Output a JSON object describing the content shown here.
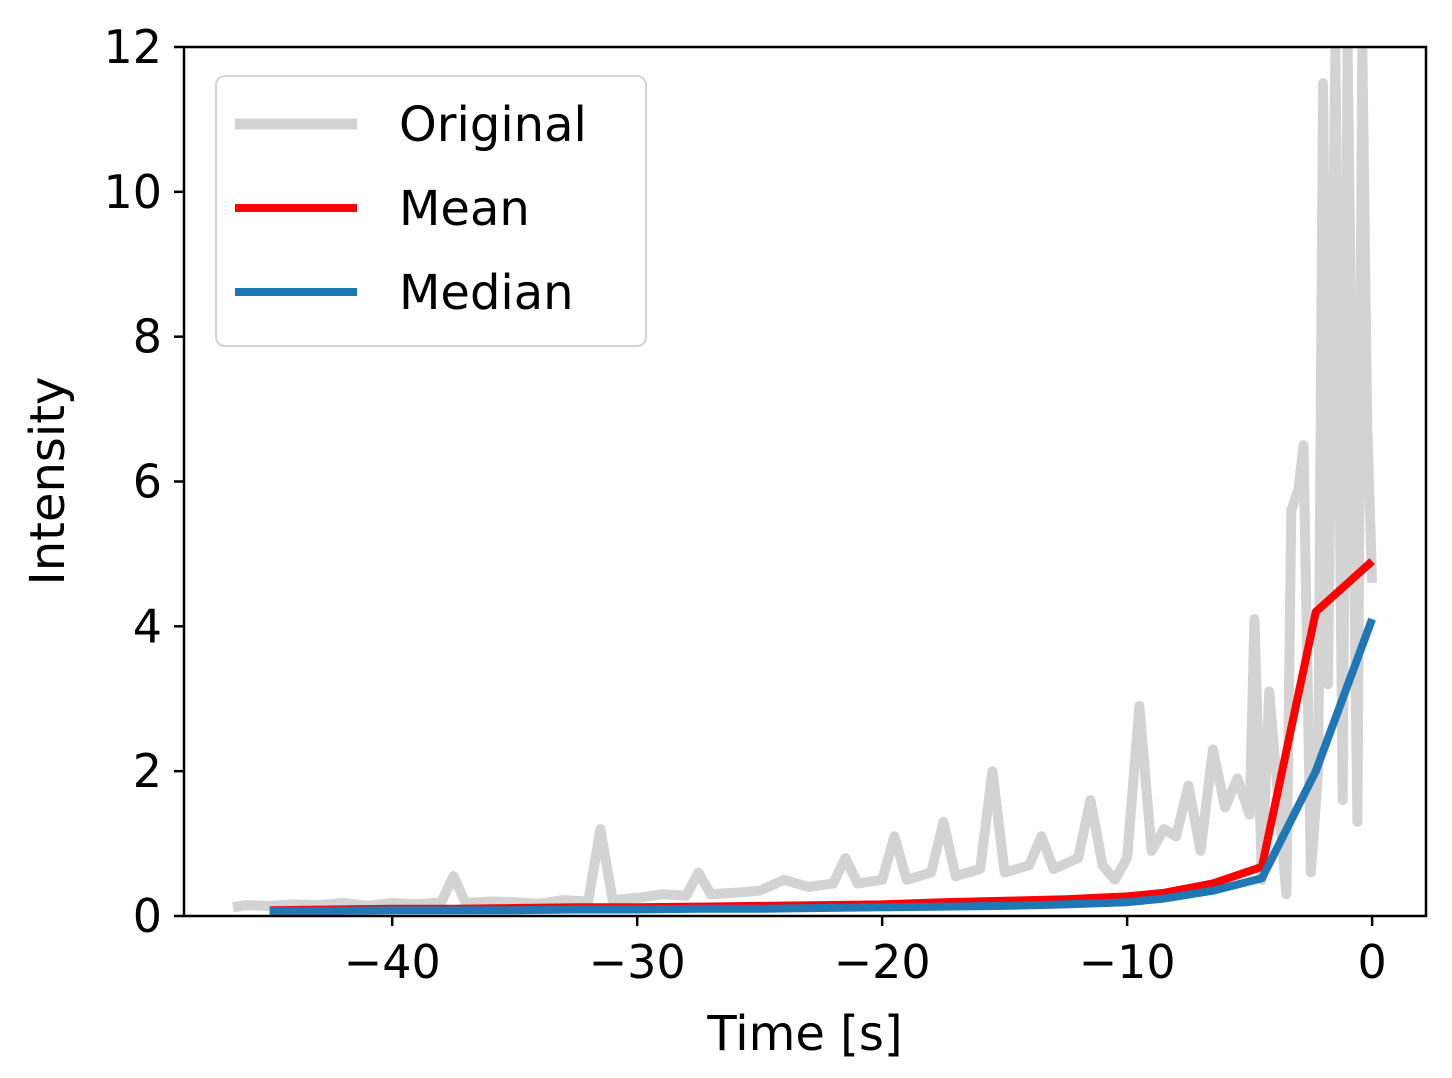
{
  "chart_data": {
    "type": "line",
    "xlabel": "Time [s]",
    "ylabel": "Intensity",
    "xlim": [
      -48.5,
      2.2
    ],
    "ylim": [
      0,
      12
    ],
    "xticks": [
      -40,
      -30,
      -20,
      -10,
      0
    ],
    "xtick_labels": [
      "−40",
      "−30",
      "−20",
      "−10",
      "0"
    ],
    "yticks": [
      0,
      2,
      4,
      6,
      8,
      10,
      12
    ],
    "ytick_labels": [
      "0",
      "2",
      "4",
      "6",
      "8",
      "10",
      "12"
    ],
    "grid": false,
    "legend_position": "top-left",
    "series": [
      {
        "name": "Original",
        "color": "#d3d3d3",
        "style": "noisy-trace",
        "x": [
          -46.5,
          -46.0,
          -45.0,
          -44.0,
          -43.0,
          -42.0,
          -41.0,
          -40.0,
          -39.0,
          -38.0,
          -37.5,
          -37.0,
          -36.0,
          -35.0,
          -34.0,
          -33.0,
          -32.0,
          -31.5,
          -31.0,
          -30.0,
          -29.0,
          -28.0,
          -27.5,
          -27.0,
          -26.0,
          -25.0,
          -24.0,
          -23.0,
          -22.0,
          -21.5,
          -21.0,
          -20.0,
          -19.5,
          -19.0,
          -18.0,
          -17.5,
          -17.0,
          -16.0,
          -15.5,
          -15.0,
          -14.0,
          -13.5,
          -13.0,
          -12.0,
          -11.5,
          -11.0,
          -10.5,
          -10.0,
          -9.5,
          -9.0,
          -8.5,
          -8.0,
          -7.5,
          -7.0,
          -6.5,
          -6.0,
          -5.5,
          -5.0,
          -4.8,
          -4.5,
          -4.2,
          -4.0,
          -3.5,
          -3.3,
          -3.0,
          -2.8,
          -2.5,
          -2.2,
          -2.0,
          -1.8,
          -1.5,
          -1.2,
          -1.0,
          -0.8,
          -0.6,
          -0.4,
          -0.2,
          0.0
        ],
        "y": [
          0.12,
          0.15,
          0.14,
          0.16,
          0.15,
          0.18,
          0.14,
          0.18,
          0.16,
          0.19,
          0.55,
          0.18,
          0.2,
          0.19,
          0.17,
          0.22,
          0.2,
          1.2,
          0.22,
          0.25,
          0.3,
          0.28,
          0.6,
          0.3,
          0.32,
          0.35,
          0.5,
          0.4,
          0.45,
          0.8,
          0.45,
          0.5,
          1.1,
          0.5,
          0.6,
          1.3,
          0.55,
          0.65,
          2.0,
          0.6,
          0.7,
          1.1,
          0.65,
          0.8,
          1.6,
          0.7,
          0.5,
          0.8,
          2.9,
          0.9,
          1.2,
          1.1,
          1.8,
          0.9,
          2.3,
          1.5,
          1.9,
          1.4,
          4.1,
          0.5,
          3.1,
          2.3,
          0.3,
          5.6,
          5.9,
          6.5,
          0.6,
          2.0,
          11.5,
          3.2,
          12.0,
          1.6,
          12.0,
          6.6,
          1.3,
          12.0,
          6.8,
          4.6
        ]
      },
      {
        "name": "Mean",
        "color": "#ff0000",
        "x": [
          -45,
          -42.5,
          -40,
          -37.5,
          -35,
          -32.5,
          -30,
          -27.5,
          -25,
          -22.5,
          -20,
          -17.5,
          -15,
          -12.5,
          -10,
          -8.5,
          -6.5,
          -4.5,
          -2.3,
          0
        ],
        "y": [
          0.08,
          0.09,
          0.1,
          0.1,
          0.11,
          0.12,
          0.12,
          0.13,
          0.14,
          0.15,
          0.16,
          0.19,
          0.21,
          0.23,
          0.27,
          0.32,
          0.45,
          0.68,
          4.2,
          4.9
        ]
      },
      {
        "name": "Median",
        "color": "#1f77b4",
        "x": [
          -45,
          -42.5,
          -40,
          -37.5,
          -35,
          -32.5,
          -30,
          -27.5,
          -25,
          -22.5,
          -20,
          -17.5,
          -15,
          -12.5,
          -10,
          -8.5,
          -6.5,
          -4.5,
          -2.3,
          0
        ],
        "y": [
          0.07,
          0.07,
          0.08,
          0.08,
          0.08,
          0.09,
          0.09,
          0.1,
          0.1,
          0.11,
          0.12,
          0.13,
          0.14,
          0.16,
          0.19,
          0.24,
          0.35,
          0.52,
          2.0,
          4.1
        ]
      }
    ]
  }
}
